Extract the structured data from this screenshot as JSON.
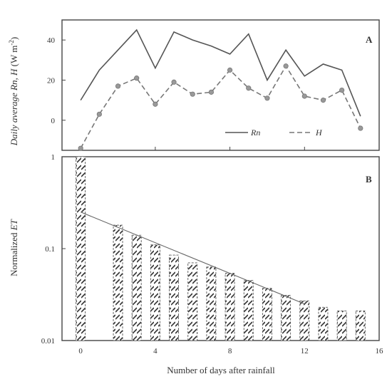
{
  "chart_data": [
    {
      "panel": "A",
      "type": "line",
      "ylabel": "Daily average Rn, H (W m⁻²)",
      "ylabel_parts": {
        "prefix": "Daily average ",
        "vars": "Rn, H",
        "unit": " (W m",
        "sup": "-2",
        "close": ")"
      },
      "xlim": [
        -1,
        16
      ],
      "ylim": [
        -15,
        50
      ],
      "yticks": [
        "0",
        "20",
        "40"
      ],
      "legend_position": "bottom-right",
      "series": [
        {
          "name": "Rn",
          "x": [
            0,
            1,
            2,
            3,
            4,
            5,
            6,
            7,
            8,
            9,
            10,
            11,
            12,
            13,
            14,
            15
          ],
          "y": [
            10,
            25,
            35,
            45,
            26,
            44,
            40,
            37,
            33,
            43,
            20,
            35,
            22,
            28,
            25,
            2
          ]
        },
        {
          "name": "H",
          "x": [
            0,
            1,
            2,
            3,
            4,
            5,
            6,
            7,
            8,
            9,
            10,
            11,
            12,
            13,
            14,
            15
          ],
          "y": [
            -14,
            3,
            17,
            21,
            8,
            19,
            13,
            14,
            25,
            16,
            11,
            27,
            12,
            10,
            15,
            -4
          ]
        }
      ]
    },
    {
      "panel": "B",
      "type": "bar",
      "ylabel": "Normalized ET",
      "ylabel_parts": {
        "prefix": "Normalized ",
        "vars": "ET"
      },
      "xlabel": "Number of days after rainfall",
      "xlim": [
        -1,
        16
      ],
      "ylim": [
        0.01,
        1
      ],
      "yscale": "log",
      "yticks": [
        "0.01",
        "0.1",
        "1"
      ],
      "xticks": [
        "0",
        "4",
        "8",
        "12",
        "16"
      ],
      "x": [
        0,
        2,
        3,
        4,
        5,
        6,
        7,
        8,
        9,
        10,
        11,
        12,
        13,
        14,
        15
      ],
      "values": [
        1.0,
        0.18,
        0.14,
        0.11,
        0.085,
        0.07,
        0.063,
        0.054,
        0.045,
        0.037,
        0.031,
        0.027,
        0.023,
        0.021,
        0.021
      ],
      "fit_line": {
        "x": [
          0,
          12
        ],
        "y": [
          0.25,
          0.025
        ]
      }
    }
  ]
}
